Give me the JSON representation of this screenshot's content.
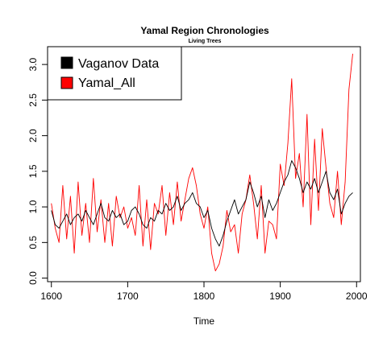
{
  "chart_data": {
    "type": "line",
    "title": "Yamal Region Chronologies",
    "subtitle": "Living Trees",
    "xlabel": "Time",
    "ylabel": "",
    "xlim": [
      1595,
      2005
    ],
    "ylim": [
      -0.05,
      3.25
    ],
    "x_ticks": [
      1600,
      1700,
      1800,
      1900,
      2000
    ],
    "y_ticks": [
      0.0,
      0.5,
      1.0,
      1.5,
      2.0,
      2.5,
      3.0
    ],
    "x_tick_labels": [
      "1600",
      "1700",
      "1800",
      "1900",
      "2000"
    ],
    "y_tick_labels": [
      "0.0",
      "0.5",
      "1.0",
      "1.5",
      "2.0",
      "2.5",
      "3.0"
    ],
    "legend_position": "top-left",
    "grid": false,
    "series": [
      {
        "name": "Vaganov Data",
        "color": "#000000",
        "x": [
          1600,
          1605,
          1610,
          1615,
          1620,
          1625,
          1630,
          1635,
          1640,
          1645,
          1650,
          1655,
          1660,
          1665,
          1670,
          1675,
          1680,
          1685,
          1690,
          1695,
          1700,
          1705,
          1710,
          1715,
          1720,
          1725,
          1730,
          1735,
          1740,
          1745,
          1750,
          1755,
          1760,
          1765,
          1770,
          1775,
          1780,
          1785,
          1790,
          1795,
          1800,
          1805,
          1810,
          1815,
          1820,
          1825,
          1830,
          1835,
          1840,
          1845,
          1850,
          1855,
          1860,
          1865,
          1870,
          1875,
          1880,
          1885,
          1890,
          1895,
          1900,
          1905,
          1910,
          1915,
          1920,
          1925,
          1930,
          1935,
          1940,
          1945,
          1950,
          1955,
          1960,
          1965,
          1970,
          1975,
          1980,
          1985,
          1990,
          1995
        ],
        "values": [
          0.95,
          0.75,
          0.7,
          0.8,
          0.9,
          0.75,
          0.85,
          0.9,
          0.8,
          0.95,
          0.85,
          0.75,
          0.9,
          1.05,
          0.85,
          0.8,
          0.95,
          0.85,
          0.9,
          0.75,
          0.8,
          0.95,
          1.0,
          0.9,
          0.75,
          0.7,
          0.85,
          0.8,
          0.95,
          0.9,
          1.05,
          0.95,
          1.0,
          1.15,
          0.95,
          1.05,
          1.1,
          1.2,
          1.05,
          1.0,
          0.85,
          0.95,
          0.7,
          0.55,
          0.45,
          0.6,
          0.8,
          0.95,
          1.1,
          0.9,
          1.0,
          1.1,
          1.35,
          1.2,
          1.0,
          1.15,
          0.85,
          1.1,
          0.95,
          1.05,
          1.2,
          1.35,
          1.45,
          1.65,
          1.55,
          1.4,
          1.2,
          1.35,
          1.25,
          1.4,
          1.2,
          1.35,
          1.5,
          1.2,
          1.1,
          1.25,
          0.9,
          1.05,
          1.15,
          1.2
        ]
      },
      {
        "name": "Yamal_All",
        "color": "#ff0000",
        "x": [
          1600,
          1605,
          1610,
          1615,
          1620,
          1625,
          1630,
          1635,
          1640,
          1645,
          1650,
          1655,
          1660,
          1665,
          1670,
          1675,
          1680,
          1685,
          1690,
          1695,
          1700,
          1705,
          1710,
          1715,
          1720,
          1725,
          1730,
          1735,
          1740,
          1745,
          1750,
          1755,
          1760,
          1765,
          1770,
          1775,
          1780,
          1785,
          1790,
          1795,
          1800,
          1805,
          1810,
          1815,
          1820,
          1825,
          1830,
          1835,
          1840,
          1845,
          1850,
          1855,
          1860,
          1865,
          1870,
          1875,
          1880,
          1885,
          1890,
          1895,
          1900,
          1905,
          1910,
          1915,
          1920,
          1925,
          1930,
          1935,
          1940,
          1945,
          1950,
          1955,
          1960,
          1965,
          1970,
          1975,
          1980,
          1985,
          1990,
          1995
        ],
        "values": [
          1.05,
          0.7,
          0.5,
          1.3,
          0.55,
          1.15,
          0.35,
          1.35,
          0.6,
          1.05,
          0.5,
          1.4,
          0.65,
          1.1,
          0.5,
          1.05,
          0.45,
          1.15,
          0.85,
          1.0,
          0.7,
          0.85,
          0.6,
          1.3,
          0.45,
          1.1,
          0.4,
          1.05,
          0.9,
          1.3,
          0.6,
          1.2,
          0.75,
          1.35,
          0.8,
          1.1,
          1.4,
          1.55,
          1.3,
          0.9,
          0.7,
          1.0,
          0.35,
          0.1,
          0.2,
          0.45,
          0.95,
          0.65,
          0.75,
          0.35,
          0.9,
          1.1,
          1.45,
          1.05,
          0.55,
          1.3,
          0.35,
          0.8,
          0.75,
          0.55,
          1.6,
          1.3,
          1.9,
          2.8,
          1.4,
          1.75,
          1.0,
          2.3,
          0.75,
          1.95,
          0.95,
          2.1,
          1.55,
          1.05,
          0.85,
          1.5,
          0.75,
          1.35,
          2.65,
          3.15
        ]
      }
    ]
  }
}
